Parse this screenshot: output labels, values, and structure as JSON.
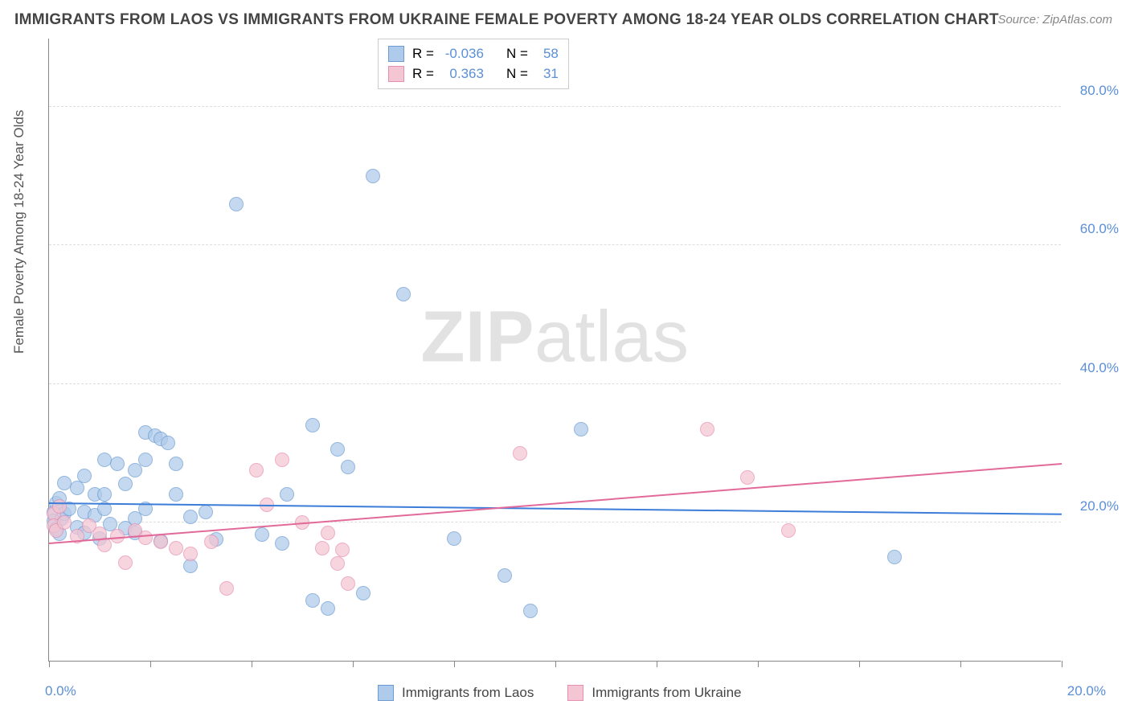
{
  "title": "IMMIGRANTS FROM LAOS VS IMMIGRANTS FROM UKRAINE FEMALE POVERTY AMONG 18-24 YEAR OLDS CORRELATION CHART",
  "source": "Source: ZipAtlas.com",
  "ylabel": "Female Poverty Among 18-24 Year Olds",
  "watermark": {
    "bold": "ZIP",
    "light": "atlas"
  },
  "chart": {
    "type": "scatter",
    "xlim": [
      0,
      20
    ],
    "ylim": [
      0,
      90
    ],
    "x_ticks": [
      0,
      2,
      4,
      6,
      8,
      10,
      12,
      14,
      16,
      18,
      20
    ],
    "x_tick_labels": {
      "0": "0.0%",
      "20": "20.0%"
    },
    "y_ticks": [
      20,
      40,
      60,
      80
    ],
    "y_tick_labels": {
      "20": "20.0%",
      "40": "40.0%",
      "60": "60.0%",
      "80": "80.0%"
    },
    "grid_color": "#dddddd",
    "axis_color": "#888888",
    "tick_label_color": "#5b8fd6",
    "marker_radius": 9,
    "marker_border": 1.2,
    "series": [
      {
        "name": "Immigrants from Laos",
        "fill": "#aecbeb",
        "stroke": "#6b9bd1",
        "fill_opacity": 0.72,
        "r": -0.036,
        "n": 58,
        "trend": {
          "y_at_x0": 22.6,
          "y_at_x20": 21.0,
          "color": "#3b7dd8",
          "width": 2
        },
        "points": [
          [
            0.1,
            21.5
          ],
          [
            0.1,
            20.2
          ],
          [
            0.15,
            22.8
          ],
          [
            0.15,
            19.1
          ],
          [
            0.2,
            23.5
          ],
          [
            0.2,
            18.4
          ],
          [
            0.25,
            20.5
          ],
          [
            0.3,
            25.7
          ],
          [
            0.3,
            21.2
          ],
          [
            0.4,
            22.0
          ],
          [
            0.55,
            25.0
          ],
          [
            0.55,
            19.3
          ],
          [
            0.7,
            26.7
          ],
          [
            0.7,
            21.5
          ],
          [
            0.7,
            18.5
          ],
          [
            0.9,
            24.0
          ],
          [
            0.9,
            21.0
          ],
          [
            1.0,
            17.7
          ],
          [
            1.1,
            29.0
          ],
          [
            1.1,
            24.0
          ],
          [
            1.1,
            22.0
          ],
          [
            1.2,
            19.8
          ],
          [
            1.35,
            28.5
          ],
          [
            1.5,
            25.5
          ],
          [
            1.5,
            19.2
          ],
          [
            1.7,
            27.5
          ],
          [
            1.7,
            20.5
          ],
          [
            1.7,
            18.5
          ],
          [
            1.9,
            33.0
          ],
          [
            1.9,
            29.0
          ],
          [
            1.9,
            22.0
          ],
          [
            2.1,
            32.5
          ],
          [
            2.2,
            32.0
          ],
          [
            2.2,
            17.3
          ],
          [
            2.35,
            31.5
          ],
          [
            2.5,
            28.5
          ],
          [
            2.5,
            24.0
          ],
          [
            2.8,
            20.8
          ],
          [
            2.8,
            13.7
          ],
          [
            3.1,
            21.5
          ],
          [
            3.3,
            17.5
          ],
          [
            3.7,
            66.0
          ],
          [
            4.2,
            18.2
          ],
          [
            4.6,
            17.0
          ],
          [
            4.7,
            24.0
          ],
          [
            5.2,
            34.0
          ],
          [
            5.2,
            8.7
          ],
          [
            5.5,
            7.5
          ],
          [
            5.7,
            30.5
          ],
          [
            5.9,
            28.0
          ],
          [
            6.2,
            9.7
          ],
          [
            6.4,
            70.0
          ],
          [
            7.0,
            53.0
          ],
          [
            8.0,
            17.6
          ],
          [
            9.0,
            12.3
          ],
          [
            9.5,
            7.2
          ],
          [
            10.5,
            33.5
          ],
          [
            16.7,
            15.0
          ]
        ]
      },
      {
        "name": "Immigrants from Ukraine",
        "fill": "#f4c5d2",
        "stroke": "#e78fb0",
        "fill_opacity": 0.72,
        "r": 0.363,
        "n": 31,
        "trend": {
          "y_at_x0": 16.8,
          "y_at_x20": 28.3,
          "color": "#e26a9a",
          "width": 2
        },
        "points": [
          [
            0.1,
            21.3
          ],
          [
            0.1,
            19.5
          ],
          [
            0.15,
            18.8
          ],
          [
            0.2,
            22.3
          ],
          [
            0.3,
            20.0
          ],
          [
            0.55,
            18.0
          ],
          [
            0.8,
            19.5
          ],
          [
            1.0,
            18.3
          ],
          [
            1.1,
            16.7
          ],
          [
            1.35,
            18.0
          ],
          [
            1.5,
            14.2
          ],
          [
            1.7,
            18.8
          ],
          [
            1.9,
            17.8
          ],
          [
            2.2,
            17.2
          ],
          [
            2.5,
            16.3
          ],
          [
            2.8,
            15.5
          ],
          [
            3.2,
            17.2
          ],
          [
            3.5,
            10.5
          ],
          [
            4.1,
            27.5
          ],
          [
            4.3,
            22.5
          ],
          [
            4.6,
            29.0
          ],
          [
            5.0,
            20.0
          ],
          [
            5.4,
            16.3
          ],
          [
            5.5,
            18.5
          ],
          [
            5.7,
            14.0
          ],
          [
            5.8,
            16.0
          ],
          [
            5.9,
            11.2
          ],
          [
            9.3,
            30.0
          ],
          [
            13.0,
            33.5
          ],
          [
            13.8,
            26.5
          ],
          [
            14.6,
            18.8
          ]
        ]
      }
    ]
  },
  "legend_top": {
    "rows": [
      {
        "swatch_fill": "#aecbeb",
        "swatch_stroke": "#6b9bd1",
        "r_label": "R =",
        "r_val": "-0.036",
        "n_label": "N =",
        "n_val": "58"
      },
      {
        "swatch_fill": "#f4c5d2",
        "swatch_stroke": "#e78fb0",
        "r_label": "R =",
        "r_val": "0.363",
        "n_label": "N =",
        "n_val": "31"
      }
    ]
  },
  "legend_bottom": [
    {
      "swatch_fill": "#aecbeb",
      "swatch_stroke": "#6b9bd1",
      "label": "Immigrants from Laos"
    },
    {
      "swatch_fill": "#f4c5d2",
      "swatch_stroke": "#e78fb0",
      "label": "Immigrants from Ukraine"
    }
  ]
}
